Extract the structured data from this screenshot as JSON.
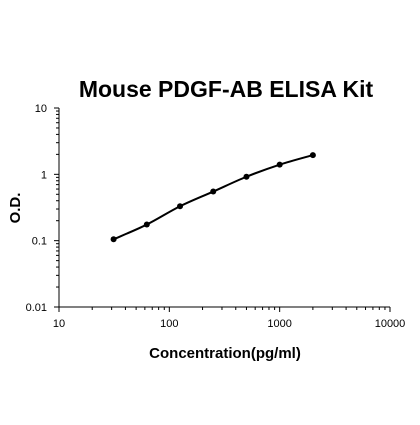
{
  "chart_data": {
    "type": "scatter",
    "title": "Mouse PDGF-AB ELISA Kit",
    "xlabel": "Concentration(pg/ml)",
    "ylabel": "O.D.",
    "x_scale": "log",
    "y_scale": "log",
    "xlim": [
      10,
      10000
    ],
    "ylim": [
      0.01,
      10
    ],
    "grid": false,
    "x_ticks": [
      10,
      100,
      1000,
      10000
    ],
    "x_tick_labels": [
      "10",
      "100",
      "1000",
      "10000"
    ],
    "y_ticks": [
      0.01,
      0.1,
      1,
      10
    ],
    "y_tick_labels": [
      "0.01",
      "0.1",
      "1",
      "10"
    ],
    "series": [
      {
        "x": [
          31.25,
          62.5,
          125,
          250,
          500,
          1000,
          2000
        ],
        "y": [
          0.105,
          0.175,
          0.33,
          0.55,
          0.92,
          1.4,
          1.95
        ],
        "fit_curve": true,
        "color": "#000000"
      }
    ]
  }
}
